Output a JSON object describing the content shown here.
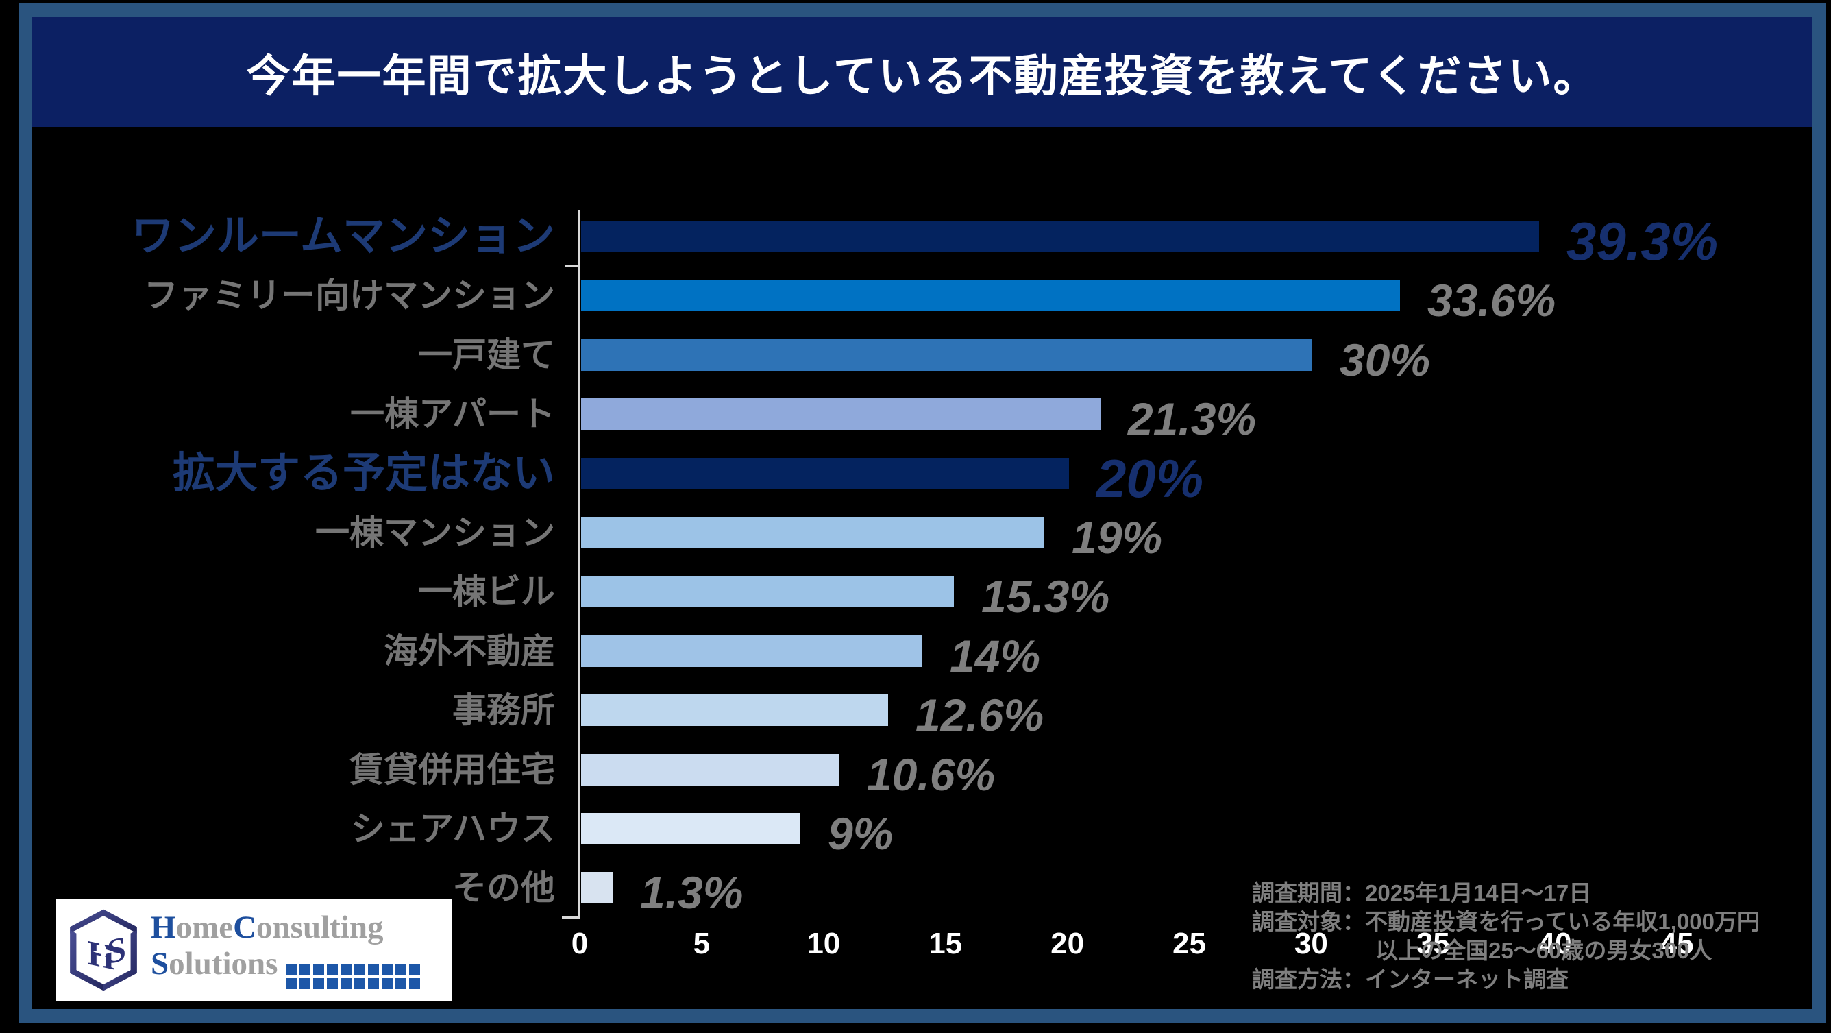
{
  "title": {
    "text": "今年一年間で拡大しようとしている不動産投資を教えてください。"
  },
  "chart_data": {
    "type": "bar",
    "orientation": "horizontal",
    "title": "今年一年間で拡大しようとしている不動産投資を教えてください。",
    "xlabel": "",
    "ylabel": "",
    "xlim": [
      0,
      45
    ],
    "x_ticks": [
      "0",
      "5",
      "10",
      "15",
      "20",
      "25",
      "30",
      "35",
      "40",
      "45"
    ],
    "grid": false,
    "legend": false,
    "categories": [
      "ワンルームマンション",
      "ファミリー向けマンション",
      "一戸建て",
      "一棟アパート",
      "拡大する予定はない",
      "一棟マンション",
      "一棟ビル",
      "海外不動産",
      "事務所",
      "賃貸併用住宅",
      "シェアハウス",
      "その他"
    ],
    "values": [
      39.3,
      33.6,
      30,
      21.3,
      20,
      19,
      15.3,
      14,
      12.6,
      10.6,
      9,
      1.3
    ],
    "value_labels": [
      "39.3%",
      "33.6%",
      "30%",
      "21.3%",
      "20%",
      "19%",
      "15.3%",
      "14%",
      "12.6%",
      "10.6%",
      "9%",
      "1.3%"
    ],
    "highlighted": [
      true,
      false,
      false,
      false,
      true,
      false,
      false,
      false,
      false,
      false,
      false,
      false
    ],
    "bar_colors": [
      "#04235f",
      "#0072c3",
      "#2e73b6",
      "#8fa9db",
      "#04235f",
      "#9cc3e7",
      "#9cc3e7",
      "#9fc3e7",
      "#bed7ee",
      "#cbdcf0",
      "#dbe8f6",
      "#d8e3f0"
    ]
  },
  "styles": {
    "background": "#000000",
    "frame_color": "#2a547f",
    "title_band_color": "#0c2063",
    "title_text_color": "#ffffff",
    "axis_color": "#d9d9d9",
    "x_tick_color": "#ffffff",
    "gray_text_color": "#7f7f7f",
    "highlight_label_color": "#1d3a75",
    "highlight_value_color": "#162f6e"
  },
  "survey_notes": {
    "lines": [
      "調査期間：2025年1月14日～17日",
      "調査対象：不動産投資を行っている年収1,000万円",
      "以上の全国25～60歳の男女300人",
      "調査方法：インターネット調査"
    ]
  },
  "logo": {
    "line1_parts": [
      {
        "text": "H",
        "blue": true
      },
      {
        "text": "ome",
        "blue": false
      },
      {
        "text": "C",
        "blue": true
      },
      {
        "text": "onsulting",
        "blue": false
      }
    ],
    "line2_parts": [
      {
        "text": "S",
        "blue": true
      },
      {
        "text": "olutions",
        "blue": false
      }
    ],
    "monogram": "HS",
    "blue": "#1e4f9e",
    "gray": "#a0a0a0",
    "square_color": "#1d57a8",
    "squares_rows": 2,
    "squares_cols": 10
  }
}
